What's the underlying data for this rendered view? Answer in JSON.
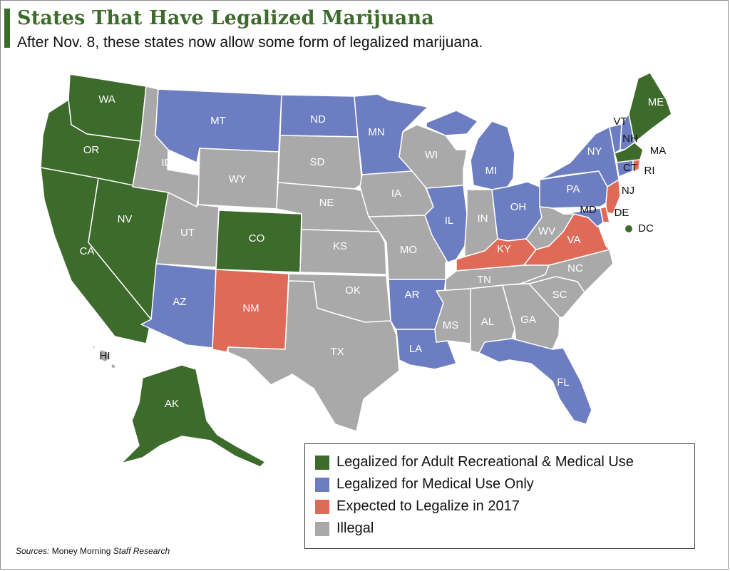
{
  "title": "States That Have Legalized Marijuana",
  "subtitle": "After Nov. 8,  these states now allow some form of legalized marijuana.",
  "colors": {
    "recreational": "#3d6b2b",
    "medical": "#6c7dc2",
    "expected": "#de6a57",
    "illegal": "#a9a9a9"
  },
  "legend": [
    {
      "key": "recreational",
      "label": "Legalized for Adult Recreational & Medical Use"
    },
    {
      "key": "medical",
      "label": "Legalized for Medical Use Only"
    },
    {
      "key": "expected",
      "label": "Expected to Legalize in 2017"
    },
    {
      "key": "illegal",
      "label": "Illegal"
    }
  ],
  "states": [
    {
      "code": "WA",
      "status": "recreational"
    },
    {
      "code": "OR",
      "status": "recreational"
    },
    {
      "code": "CA",
      "status": "recreational"
    },
    {
      "code": "NV",
      "status": "recreational"
    },
    {
      "code": "CO",
      "status": "recreational"
    },
    {
      "code": "AK",
      "status": "recreational"
    },
    {
      "code": "ME",
      "status": "recreational"
    },
    {
      "code": "MA",
      "status": "recreational"
    },
    {
      "code": "DC",
      "status": "recreational"
    },
    {
      "code": "MT",
      "status": "medical"
    },
    {
      "code": "ND",
      "status": "medical"
    },
    {
      "code": "MN",
      "status": "medical"
    },
    {
      "code": "MI",
      "status": "medical"
    },
    {
      "code": "IL",
      "status": "medical"
    },
    {
      "code": "OH",
      "status": "medical"
    },
    {
      "code": "PA",
      "status": "medical"
    },
    {
      "code": "NY",
      "status": "medical"
    },
    {
      "code": "VT",
      "status": "medical"
    },
    {
      "code": "NH",
      "status": "medical"
    },
    {
      "code": "CT",
      "status": "medical"
    },
    {
      "code": "AZ",
      "status": "medical"
    },
    {
      "code": "AR",
      "status": "medical"
    },
    {
      "code": "LA",
      "status": "medical"
    },
    {
      "code": "FL",
      "status": "medical"
    },
    {
      "code": "MD",
      "status": "medical"
    },
    {
      "code": "NM",
      "status": "expected"
    },
    {
      "code": "KY",
      "status": "expected"
    },
    {
      "code": "VA",
      "status": "expected"
    },
    {
      "code": "NJ",
      "status": "expected"
    },
    {
      "code": "DE",
      "status": "expected"
    },
    {
      "code": "RI",
      "status": "expected"
    },
    {
      "code": "ID",
      "status": "illegal"
    },
    {
      "code": "WY",
      "status": "illegal"
    },
    {
      "code": "SD",
      "status": "illegal"
    },
    {
      "code": "NE",
      "status": "illegal"
    },
    {
      "code": "UT",
      "status": "illegal"
    },
    {
      "code": "KS",
      "status": "illegal"
    },
    {
      "code": "OK",
      "status": "illegal"
    },
    {
      "code": "TX",
      "status": "illegal"
    },
    {
      "code": "IA",
      "status": "illegal"
    },
    {
      "code": "MO",
      "status": "illegal"
    },
    {
      "code": "WI",
      "status": "illegal"
    },
    {
      "code": "IN",
      "status": "illegal"
    },
    {
      "code": "WV",
      "status": "illegal"
    },
    {
      "code": "TN",
      "status": "illegal"
    },
    {
      "code": "NC",
      "status": "illegal"
    },
    {
      "code": "SC",
      "status": "illegal"
    },
    {
      "code": "GA",
      "status": "illegal"
    },
    {
      "code": "AL",
      "status": "illegal"
    },
    {
      "code": "MS",
      "status": "illegal"
    },
    {
      "code": "HI",
      "status": "illegal"
    }
  ],
  "source": {
    "prefix": "Sources: ",
    "org": "Money Morning ",
    "research": "Staff Research"
  }
}
